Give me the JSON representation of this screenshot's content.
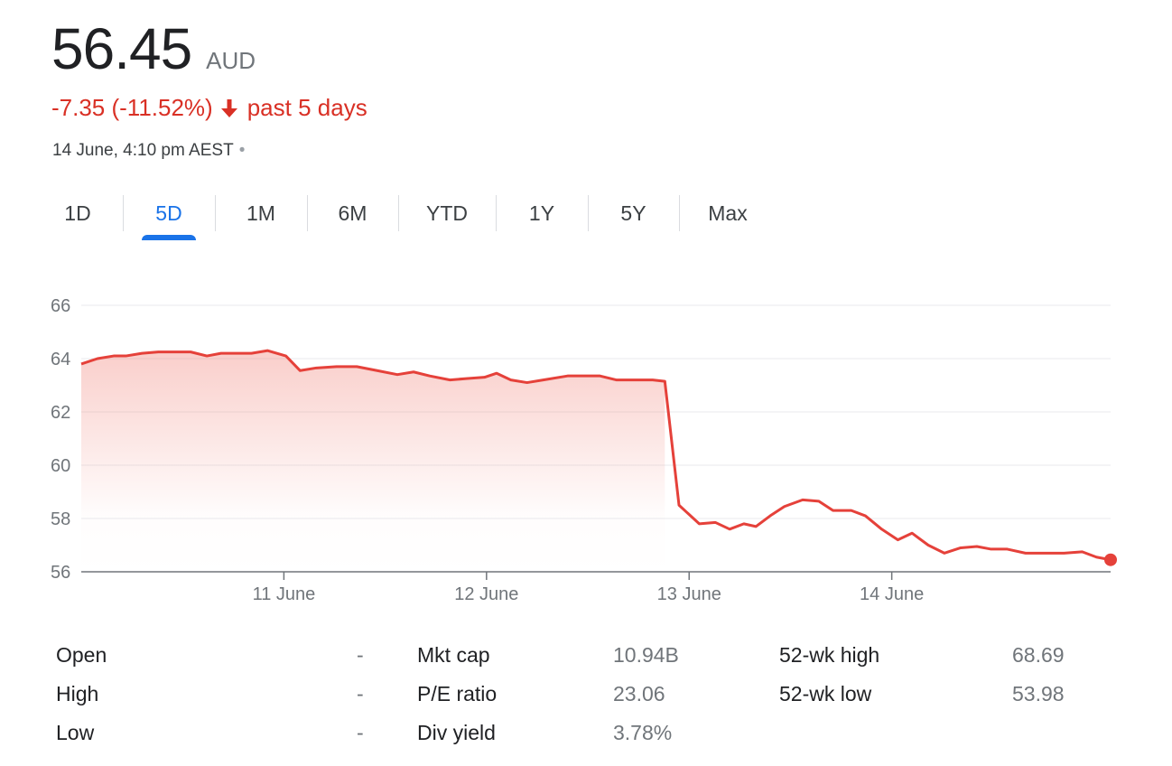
{
  "quote": {
    "price": "56.45",
    "currency": "AUD",
    "change": "-7.35 (-11.52%)",
    "period": "past 5 days",
    "timestamp": "14 June, 4:10 pm AEST",
    "separator": "•",
    "trend_color": "#d93025",
    "arrow_icon": "arrow-down-icon"
  },
  "tabs": [
    {
      "label": "1D",
      "active": false
    },
    {
      "label": "5D",
      "active": true
    },
    {
      "label": "1M",
      "active": false
    },
    {
      "label": "6M",
      "active": false
    },
    {
      "label": "YTD",
      "active": false
    },
    {
      "label": "1Y",
      "active": false
    },
    {
      "label": "5Y",
      "active": false
    },
    {
      "label": "Max",
      "active": false
    }
  ],
  "chart_data": {
    "type": "area",
    "title": "",
    "xlabel": "",
    "ylabel": "",
    "ylim": [
      56,
      66
    ],
    "y_ticks": [
      66,
      64,
      62,
      60,
      58,
      56
    ],
    "x_ticks": [
      {
        "label": "11 June",
        "x": 1.0
      },
      {
        "label": "12 June",
        "x": 2.0
      },
      {
        "label": "13 June",
        "x": 3.0
      },
      {
        "label": "14 June",
        "x": 4.0
      }
    ],
    "xlim": [
      0,
      5.08
    ],
    "grid": true,
    "line_color": "#e5413a",
    "fill_color": "#f28b82",
    "series": [
      {
        "x": [
          0.0,
          0.08,
          0.16,
          0.22,
          0.3,
          0.38,
          0.45,
          0.54,
          0.62,
          0.69,
          0.76,
          0.84,
          0.92,
          1.01,
          1.08,
          1.16,
          1.26,
          1.36,
          1.46,
          1.56,
          1.64,
          1.72,
          1.82,
          1.9,
          1.99,
          2.05,
          2.12,
          2.2,
          2.28,
          2.4,
          2.48,
          2.56,
          2.64,
          2.72,
          2.82,
          2.88,
          2.95,
          3.05,
          3.13,
          3.2,
          3.27,
          3.33,
          3.4,
          3.47,
          3.56,
          3.64,
          3.71,
          3.8,
          3.87,
          3.95,
          4.03,
          4.1,
          4.18,
          4.26,
          4.34,
          4.42,
          4.49,
          4.57,
          4.66,
          4.75,
          4.85,
          4.94,
          5.01,
          5.08
        ],
        "y": [
          63.8,
          64.0,
          64.1,
          64.1,
          64.2,
          64.25,
          64.25,
          64.25,
          64.1,
          64.2,
          64.2,
          64.2,
          64.3,
          64.1,
          63.55,
          63.65,
          63.7,
          63.7,
          63.55,
          63.4,
          63.5,
          63.35,
          63.2,
          63.25,
          63.3,
          63.45,
          63.2,
          63.1,
          63.2,
          63.35,
          63.35,
          63.35,
          63.2,
          63.2,
          63.2,
          63.15,
          58.5,
          57.8,
          57.85,
          57.6,
          57.8,
          57.7,
          58.1,
          58.45,
          58.7,
          58.65,
          58.3,
          58.3,
          58.1,
          57.6,
          57.2,
          57.45,
          57.0,
          56.7,
          56.9,
          56.95,
          56.85,
          56.85,
          56.7,
          56.7,
          56.7,
          56.75,
          56.55,
          56.45
        ]
      }
    ]
  },
  "stats": [
    [
      {
        "label": "Open",
        "value": "-"
      },
      {
        "label": "Mkt cap",
        "value": "10.94B"
      },
      {
        "label": "52-wk high",
        "value": "68.69"
      }
    ],
    [
      {
        "label": "High",
        "value": "-"
      },
      {
        "label": "P/E ratio",
        "value": "23.06"
      },
      {
        "label": "52-wk low",
        "value": "53.98"
      }
    ],
    [
      {
        "label": "Low",
        "value": "-"
      },
      {
        "label": "Div yield",
        "value": "3.78%"
      },
      {
        "label": "",
        "value": ""
      }
    ]
  ]
}
